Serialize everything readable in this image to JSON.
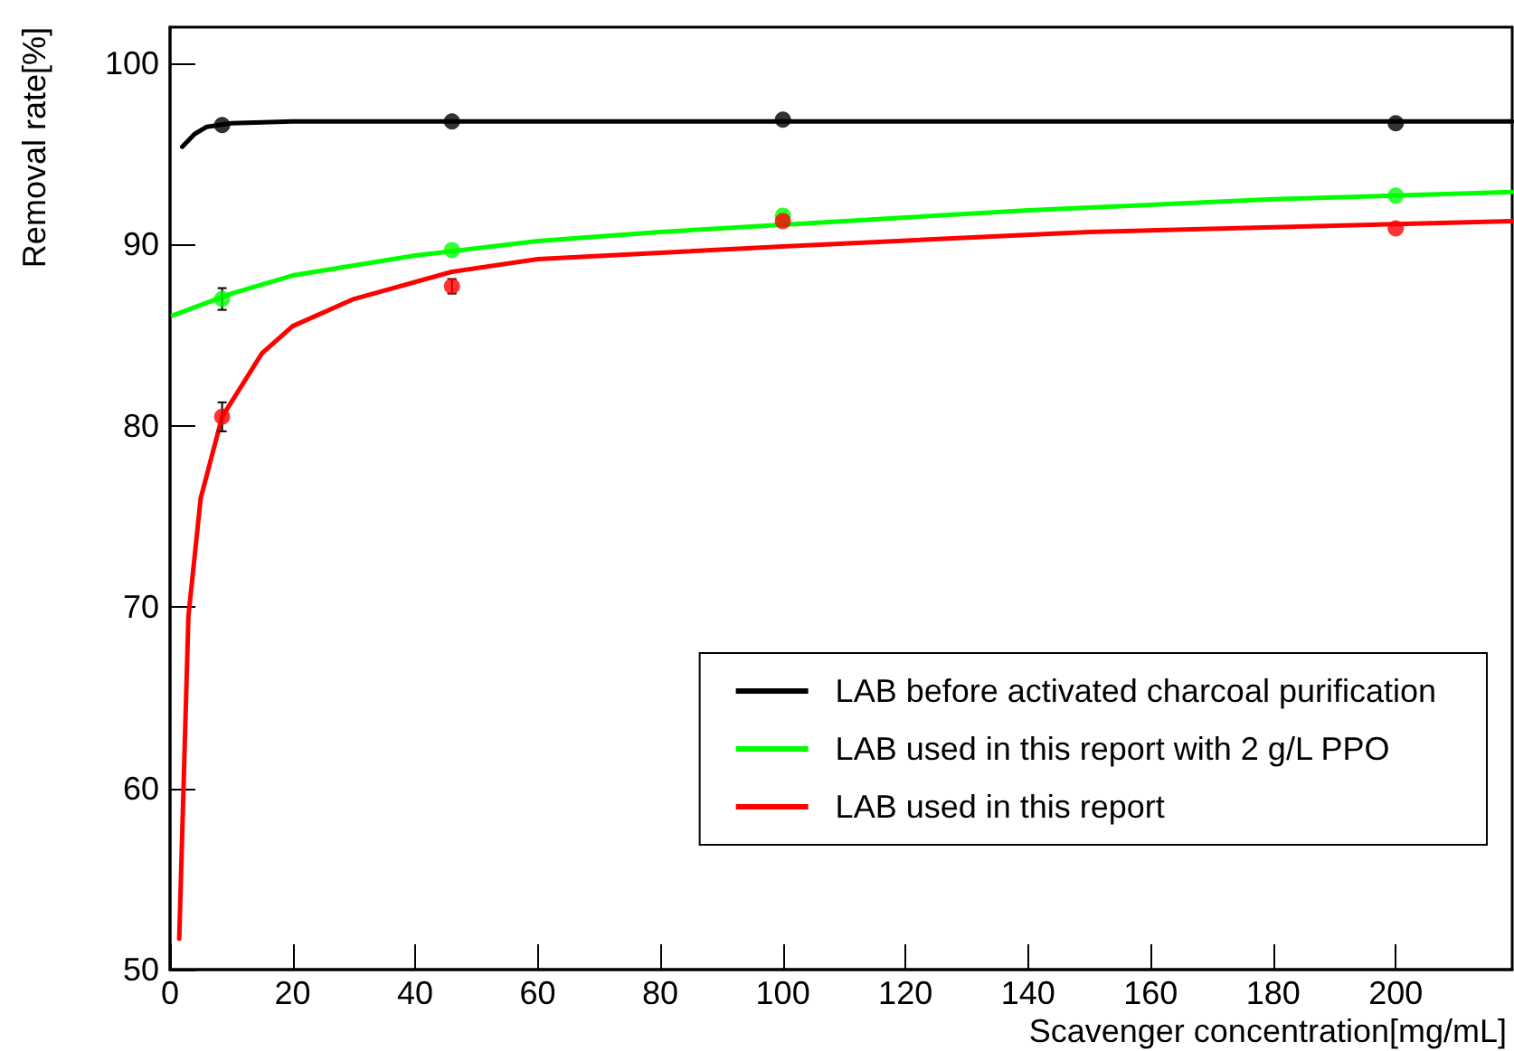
{
  "chart_data": {
    "type": "scatter",
    "xlabel": "Scavenger concentration[mg/mL]",
    "ylabel": "Removal rate[%]",
    "xlim": [
      0,
      219
    ],
    "xticks": [
      0,
      20,
      40,
      60,
      80,
      100,
      120,
      140,
      160,
      180,
      200
    ],
    "ylim": [
      50,
      102
    ],
    "yticks": [
      50,
      60,
      70,
      80,
      90,
      100
    ],
    "grid": false,
    "legend": "bottom right",
    "marker": "circle",
    "series": [
      {
        "type": "line",
        "name": "LAB before activated charcoal purification",
        "color": "#000000",
        "marker": "none",
        "x": [
          2,
          4,
          6,
          10,
          20,
          50,
          100,
          219
        ],
        "values": [
          95.4,
          96.1,
          96.5,
          96.7,
          96.8,
          96.8,
          96.8,
          96.8
        ]
      },
      {
        "type": "line",
        "name": "LAB used in this report with 2 g/L PPO",
        "color": "#00ff00",
        "marker": "none",
        "x": [
          0.5,
          10,
          20,
          40,
          60,
          80,
          100,
          140,
          180,
          219
        ],
        "values": [
          86.1,
          87.3,
          88.3,
          89.4,
          90.2,
          90.7,
          91.1,
          91.9,
          92.5,
          92.9
        ]
      },
      {
        "type": "line",
        "name": "LAB used in this report",
        "color": "#ff0000",
        "marker": "none",
        "x": [
          1.5,
          3,
          5,
          8.5,
          15,
          20,
          30,
          46,
          60,
          100,
          150,
          219
        ],
        "values": [
          51.7,
          69.5,
          76,
          80.5,
          84,
          85.5,
          87,
          88.5,
          89.2,
          89.9,
          90.7,
          91.3
        ]
      },
      {
        "color": "#000000",
        "x": [
          8.5,
          46,
          100,
          200
        ],
        "values": [
          96.6,
          96.8,
          96.9,
          96.7
        ]
      },
      {
        "color": "#00ff00",
        "x": [
          8.5,
          46,
          100,
          200
        ],
        "values": [
          87,
          89.7,
          91.6,
          92.7
        ],
        "errors": [
          0.6,
          null,
          null,
          null
        ]
      },
      {
        "color": "#ff0000",
        "x": [
          8.5,
          46,
          100,
          200
        ],
        "values": [
          80.5,
          87.7,
          91.3,
          90.9
        ],
        "errors": [
          0.8,
          0.4,
          null,
          null
        ]
      }
    ]
  }
}
